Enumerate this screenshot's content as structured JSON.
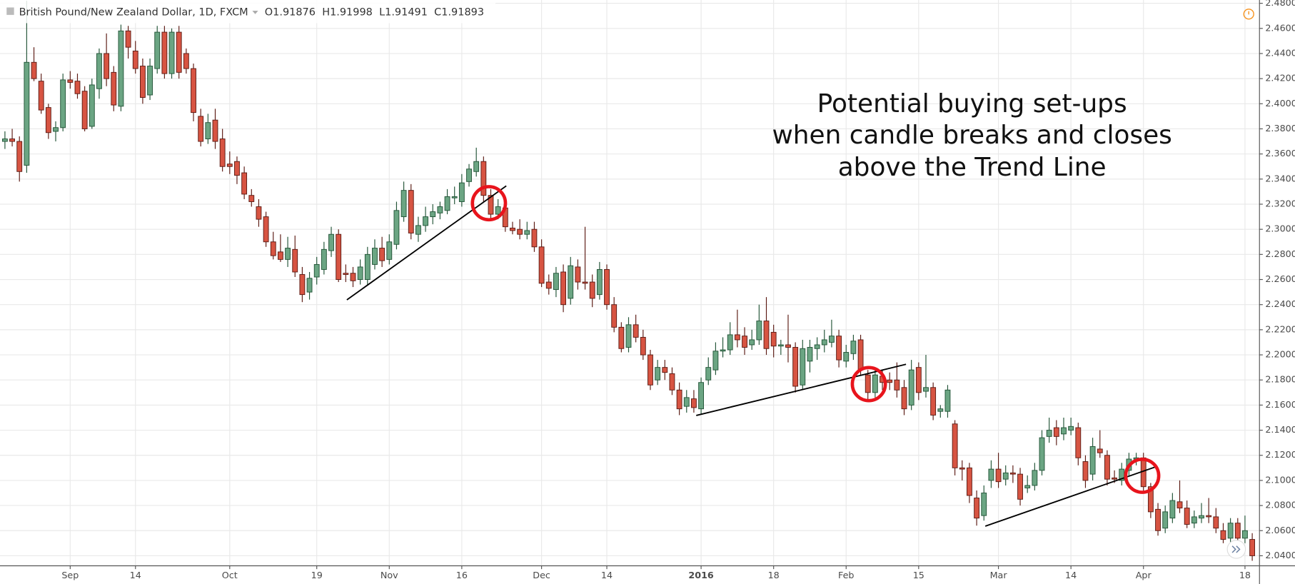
{
  "chart_data": {
    "type": "candlestick",
    "title": "British Pound/New Zealand Dollar, 1D, FXCM",
    "ohlc_readout": [
      "O1.91876",
      "H1.91998",
      "L1.91491",
      "C1.91893"
    ],
    "annotations": [
      "Potential buying set-ups",
      "when candle breaks and closes",
      "above the Trend Line"
    ],
    "up_color": "#6ba583",
    "down_color": "#d75442",
    "grid": true,
    "xlim": [
      -0.68,
      173.0
    ],
    "ylim": [
      2.032,
      2.4826
    ],
    "xticks": [
      {
        "value": 9,
        "label": "Sep"
      },
      {
        "value": 18,
        "label": "14"
      },
      {
        "value": 31,
        "label": "Oct"
      },
      {
        "value": 43,
        "label": "19"
      },
      {
        "value": 53,
        "label": "Nov"
      },
      {
        "value": 63,
        "label": "16"
      },
      {
        "value": 74,
        "label": "Dec"
      },
      {
        "value": 83,
        "label": "14"
      },
      {
        "value": 96,
        "label": "2016"
      },
      {
        "value": 106,
        "label": "18"
      },
      {
        "value": 116,
        "label": "Feb"
      },
      {
        "value": 126,
        "label": "15"
      },
      {
        "value": 137,
        "label": "Mar"
      },
      {
        "value": 147,
        "label": "14"
      },
      {
        "value": 157,
        "label": "Apr"
      },
      {
        "value": 171,
        "label": "18"
      }
    ],
    "yticks": [
      {
        "value": 2.04,
        "label": "2.04000"
      },
      {
        "value": 2.06,
        "label": "2.06000"
      },
      {
        "value": 2.08,
        "label": "2.08000"
      },
      {
        "value": 2.1,
        "label": "2.10000"
      },
      {
        "value": 2.12,
        "label": "2.12000"
      },
      {
        "value": 2.14,
        "label": "2.14000"
      },
      {
        "value": 2.16,
        "label": "2.16000"
      },
      {
        "value": 2.18,
        "label": "2.18000"
      },
      {
        "value": 2.2,
        "label": "2.20000"
      },
      {
        "value": 2.22,
        "label": "2.22000"
      },
      {
        "value": 2.24,
        "label": "2.24000"
      },
      {
        "value": 2.26,
        "label": "2.26000"
      },
      {
        "value": 2.28,
        "label": "2.28000"
      },
      {
        "value": 2.3,
        "label": "2.30000"
      },
      {
        "value": 2.32,
        "label": "2.32000"
      },
      {
        "value": 2.34,
        "label": "2.34000"
      },
      {
        "value": 2.36,
        "label": "2.36000"
      },
      {
        "value": 2.38,
        "label": "2.38000"
      },
      {
        "value": 2.4,
        "label": "2.40000"
      },
      {
        "value": 2.42,
        "label": "2.42000"
      },
      {
        "value": 2.44,
        "label": "2.44000"
      },
      {
        "value": 2.46,
        "label": "2.46000"
      },
      {
        "value": 2.48,
        "label": "2.48000"
      }
    ],
    "ohlc": [
      [
        2.37,
        2.378,
        2.364,
        2.372
      ],
      [
        2.372,
        2.38,
        2.366,
        2.37
      ],
      [
        2.37,
        2.374,
        2.338,
        2.346
      ],
      [
        2.351,
        2.482,
        2.345,
        2.433
      ],
      [
        2.433,
        2.445,
        2.418,
        2.42
      ],
      [
        2.418,
        2.424,
        2.392,
        2.395
      ],
      [
        2.397,
        2.4,
        2.372,
        2.377
      ],
      [
        2.378,
        2.386,
        2.37,
        2.381
      ],
      [
        2.381,
        2.424,
        2.378,
        2.419
      ],
      [
        2.419,
        2.426,
        2.412,
        2.417
      ],
      [
        2.418,
        2.424,
        2.404,
        2.408
      ],
      [
        2.41,
        2.414,
        2.378,
        2.38
      ],
      [
        2.382,
        2.42,
        2.38,
        2.415
      ],
      [
        2.412,
        2.444,
        2.404,
        2.44
      ],
      [
        2.44,
        2.456,
        2.414,
        2.42
      ],
      [
        2.425,
        2.43,
        2.394,
        2.399
      ],
      [
        2.398,
        2.463,
        2.394,
        2.458
      ],
      [
        2.458,
        2.462,
        2.436,
        2.445
      ],
      [
        2.442,
        2.45,
        2.424,
        2.428
      ],
      [
        2.43,
        2.436,
        2.4,
        2.405
      ],
      [
        2.407,
        2.436,
        2.403,
        2.43
      ],
      [
        2.428,
        2.462,
        2.424,
        2.457
      ],
      [
        2.457,
        2.462,
        2.42,
        2.424
      ],
      [
        2.424,
        2.46,
        2.42,
        2.457
      ],
      [
        2.457,
        2.462,
        2.42,
        2.425
      ],
      [
        2.44,
        2.444,
        2.424,
        2.428
      ],
      [
        2.428,
        2.432,
        2.386,
        2.393
      ],
      [
        2.39,
        2.396,
        2.366,
        2.37
      ],
      [
        2.372,
        2.392,
        2.368,
        2.385
      ],
      [
        2.387,
        2.396,
        2.364,
        2.37
      ],
      [
        2.372,
        2.38,
        2.346,
        2.35
      ],
      [
        2.352,
        2.362,
        2.344,
        2.35
      ],
      [
        2.354,
        2.358,
        2.336,
        2.343
      ],
      [
        2.345,
        2.35,
        2.324,
        2.328
      ],
      [
        2.327,
        2.332,
        2.318,
        2.322
      ],
      [
        2.318,
        2.324,
        2.302,
        2.308
      ],
      [
        2.31,
        2.314,
        2.286,
        2.29
      ],
      [
        2.29,
        2.298,
        2.276,
        2.279
      ],
      [
        2.282,
        2.296,
        2.274,
        2.276
      ],
      [
        2.276,
        2.294,
        2.27,
        2.285
      ],
      [
        2.284,
        2.295,
        2.262,
        2.266
      ],
      [
        2.264,
        2.27,
        2.242,
        2.248
      ],
      [
        2.25,
        2.266,
        2.244,
        2.261
      ],
      [
        2.262,
        2.278,
        2.256,
        2.272
      ],
      [
        2.268,
        2.29,
        2.264,
        2.284
      ],
      [
        2.283,
        2.302,
        2.278,
        2.296
      ],
      [
        2.296,
        2.3,
        2.258,
        2.26
      ],
      [
        2.265,
        2.272,
        2.258,
        2.264
      ],
      [
        2.265,
        2.27,
        2.254,
        2.259
      ],
      [
        2.26,
        2.276,
        2.256,
        2.27
      ],
      [
        2.26,
        2.286,
        2.256,
        2.28
      ],
      [
        2.272,
        2.292,
        2.268,
        2.285
      ],
      [
        2.285,
        2.294,
        2.27,
        2.275
      ],
      [
        2.276,
        2.296,
        2.272,
        2.29
      ],
      [
        2.288,
        2.322,
        2.284,
        2.315
      ],
      [
        2.31,
        2.338,
        2.306,
        2.331
      ],
      [
        2.331,
        2.336,
        2.292,
        2.297
      ],
      [
        2.296,
        2.31,
        2.29,
        2.303
      ],
      [
        2.303,
        2.318,
        2.298,
        2.31
      ],
      [
        2.31,
        2.32,
        2.304,
        2.314
      ],
      [
        2.313,
        2.322,
        2.308,
        2.318
      ],
      [
        2.315,
        2.332,
        2.312,
        2.326
      ],
      [
        2.325,
        2.334,
        2.32,
        2.326
      ],
      [
        2.322,
        2.344,
        2.318,
        2.337
      ],
      [
        2.338,
        2.352,
        2.334,
        2.348
      ],
      [
        2.346,
        2.365,
        2.342,
        2.354
      ],
      [
        2.354,
        2.358,
        2.322,
        2.327
      ],
      [
        2.327,
        2.332,
        2.308,
        2.312
      ],
      [
        2.312,
        2.324,
        2.308,
        2.318
      ],
      [
        2.317,
        2.322,
        2.298,
        2.302
      ],
      [
        2.301,
        2.306,
        2.296,
        2.299
      ],
      [
        2.3,
        2.308,
        2.292,
        2.296
      ],
      [
        2.296,
        2.306,
        2.292,
        2.299
      ],
      [
        2.3,
        2.306,
        2.282,
        2.286
      ],
      [
        2.286,
        2.292,
        2.254,
        2.257
      ],
      [
        2.258,
        2.264,
        2.248,
        2.253
      ],
      [
        2.252,
        2.27,
        2.246,
        2.265
      ],
      [
        2.266,
        2.272,
        2.234,
        2.24
      ],
      [
        2.245,
        2.278,
        2.24,
        2.271
      ],
      [
        2.27,
        2.276,
        2.252,
        2.258
      ],
      [
        2.258,
        2.302,
        2.252,
        2.257
      ],
      [
        2.258,
        2.264,
        2.238,
        2.245
      ],
      [
        2.248,
        2.274,
        2.244,
        2.268
      ],
      [
        2.268,
        2.272,
        2.236,
        2.24
      ],
      [
        2.24,
        2.246,
        2.218,
        2.222
      ],
      [
        2.222,
        2.226,
        2.202,
        2.205
      ],
      [
        2.206,
        2.23,
        2.202,
        2.224
      ],
      [
        2.224,
        2.232,
        2.21,
        2.214
      ],
      [
        2.214,
        2.22,
        2.196,
        2.2
      ],
      [
        2.2,
        2.204,
        2.172,
        2.176
      ],
      [
        2.18,
        2.196,
        2.176,
        2.19
      ],
      [
        2.19,
        2.196,
        2.18,
        2.186
      ],
      [
        2.185,
        2.19,
        2.168,
        2.172
      ],
      [
        2.172,
        2.178,
        2.152,
        2.157
      ],
      [
        2.159,
        2.172,
        2.154,
        2.166
      ],
      [
        2.165,
        2.172,
        2.154,
        2.158
      ],
      [
        2.157,
        2.182,
        2.153,
        2.178
      ],
      [
        2.18,
        2.198,
        2.176,
        2.19
      ],
      [
        2.188,
        2.21,
        2.184,
        2.203
      ],
      [
        2.203,
        2.214,
        2.198,
        2.204
      ],
      [
        2.204,
        2.226,
        2.2,
        2.216
      ],
      [
        2.216,
        2.236,
        2.206,
        2.212
      ],
      [
        2.215,
        2.222,
        2.2,
        2.206
      ],
      [
        2.208,
        2.22,
        2.204,
        2.212
      ],
      [
        2.212,
        2.24,
        2.208,
        2.227
      ],
      [
        2.227,
        2.246,
        2.2,
        2.205
      ],
      [
        2.218,
        2.224,
        2.198,
        2.207
      ],
      [
        2.207,
        2.212,
        2.2,
        2.208
      ],
      [
        2.208,
        2.232,
        2.194,
        2.206
      ],
      [
        2.206,
        2.21,
        2.17,
        2.175
      ],
      [
        2.176,
        2.212,
        2.172,
        2.205
      ],
      [
        2.195,
        2.212,
        2.186,
        2.206
      ],
      [
        2.205,
        2.214,
        2.196,
        2.208
      ],
      [
        2.208,
        2.22,
        2.202,
        2.212
      ],
      [
        2.21,
        2.228,
        2.206,
        2.215
      ],
      [
        2.215,
        2.22,
        2.19,
        2.196
      ],
      [
        2.195,
        2.208,
        2.19,
        2.202
      ],
      [
        2.201,
        2.216,
        2.196,
        2.211
      ],
      [
        2.212,
        2.216,
        2.184,
        2.188
      ],
      [
        2.184,
        2.188,
        2.164,
        2.17
      ],
      [
        2.17,
        2.19,
        2.166,
        2.184
      ],
      [
        2.183,
        2.188,
        2.172,
        2.178
      ],
      [
        2.18,
        2.186,
        2.172,
        2.178
      ],
      [
        2.18,
        2.194,
        2.166,
        2.172
      ],
      [
        2.174,
        2.18,
        2.152,
        2.157
      ],
      [
        2.16,
        2.196,
        2.156,
        2.188
      ],
      [
        2.19,
        2.194,
        2.164,
        2.17
      ],
      [
        2.171,
        2.2,
        2.166,
        2.174
      ],
      [
        2.174,
        2.178,
        2.148,
        2.152
      ],
      [
        2.155,
        2.16,
        2.15,
        2.157
      ],
      [
        2.155,
        2.176,
        2.15,
        2.172
      ],
      [
        2.145,
        2.148,
        2.104,
        2.11
      ],
      [
        2.11,
        2.116,
        2.1,
        2.109
      ],
      [
        2.11,
        2.114,
        2.082,
        2.088
      ],
      [
        2.086,
        2.092,
        2.064,
        2.07
      ],
      [
        2.072,
        2.096,
        2.068,
        2.09
      ],
      [
        2.1,
        2.116,
        2.094,
        2.109
      ],
      [
        2.109,
        2.122,
        2.094,
        2.099
      ],
      [
        2.101,
        2.112,
        2.096,
        2.106
      ],
      [
        2.106,
        2.112,
        2.098,
        2.105
      ],
      [
        2.105,
        2.11,
        2.08,
        2.085
      ],
      [
        2.094,
        2.104,
        2.09,
        2.096
      ],
      [
        2.096,
        2.114,
        2.092,
        2.108
      ],
      [
        2.108,
        2.14,
        2.104,
        2.134
      ],
      [
        2.135,
        2.15,
        2.13,
        2.14
      ],
      [
        2.142,
        2.148,
        2.128,
        2.135
      ],
      [
        2.137,
        2.15,
        2.132,
        2.142
      ],
      [
        2.14,
        2.15,
        2.136,
        2.143
      ],
      [
        2.142,
        2.146,
        2.112,
        2.118
      ],
      [
        2.115,
        2.12,
        2.094,
        2.1
      ],
      [
        2.105,
        2.134,
        2.1,
        2.127
      ],
      [
        2.125,
        2.14,
        2.118,
        2.122
      ],
      [
        2.12,
        2.124,
        2.096,
        2.101
      ],
      [
        2.102,
        2.108,
        2.098,
        2.101
      ],
      [
        2.1,
        2.114,
        2.096,
        2.109
      ],
      [
        2.108,
        2.122,
        2.104,
        2.117
      ],
      [
        2.117,
        2.122,
        2.112,
        2.118
      ],
      [
        2.118,
        2.122,
        2.09,
        2.095
      ],
      [
        2.095,
        2.098,
        2.07,
        2.075
      ],
      [
        2.077,
        2.082,
        2.056,
        2.06
      ],
      [
        2.062,
        2.08,
        2.058,
        2.075
      ],
      [
        2.07,
        2.09,
        2.066,
        2.084
      ],
      [
        2.083,
        2.1,
        2.074,
        2.078
      ],
      [
        2.078,
        2.084,
        2.062,
        2.065
      ],
      [
        2.066,
        2.076,
        2.062,
        2.071
      ],
      [
        2.07,
        2.082,
        2.066,
        2.072
      ],
      [
        2.072,
        2.086,
        2.066,
        2.071
      ],
      [
        2.071,
        2.078,
        2.058,
        2.062
      ],
      [
        2.06,
        2.066,
        2.05,
        2.053
      ],
      [
        2.054,
        2.07,
        2.05,
        2.066
      ],
      [
        2.066,
        2.07,
        2.05,
        2.054
      ],
      [
        2.054,
        2.072,
        2.05,
        2.06
      ],
      [
        2.053,
        2.058,
        2.036,
        2.04
      ]
    ]
  }
}
